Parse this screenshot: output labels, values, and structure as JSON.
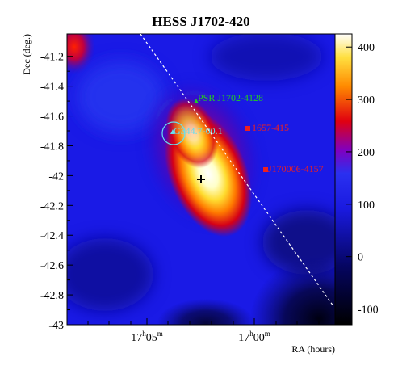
{
  "chart_data": {
    "type": "heatmap",
    "title": "HESS J1702-420",
    "xlabel": "RA (hours)",
    "ylabel": "Dec (deg.)",
    "x_ticks": [
      {
        "h": "17",
        "m": "05",
        "label": "17h05m"
      },
      {
        "h": "17",
        "m": "00",
        "label": "17h00m"
      }
    ],
    "y_ticks": [
      "-41.2",
      "-41.4",
      "-41.6",
      "-41.8",
      "-42",
      "-42.2",
      "-42.4",
      "-42.6",
      "-42.8",
      "-43"
    ],
    "ylim": [
      -43,
      -41.05
    ],
    "colorbar": {
      "range": [
        -130,
        425
      ],
      "ticks": [
        "400",
        "300",
        "200",
        "100",
        "0",
        "-100"
      ],
      "colormap": "black-blue-red-yellow-white"
    },
    "sources": [
      {
        "label": "PSR J1702-4128",
        "color": "#22cc22",
        "marker": "triangle"
      },
      {
        "label": "G344.7-00.1",
        "color": "#66e0f0",
        "marker": "circle"
      },
      {
        "label": "1657-415",
        "color": "#ee2020",
        "marker": "square"
      },
      {
        "label": "J170006-4157",
        "color": "#ee2020",
        "marker": "square"
      }
    ],
    "annotations": [
      "galactic plane (dashed line)",
      "best-fit position (black cross)"
    ]
  }
}
